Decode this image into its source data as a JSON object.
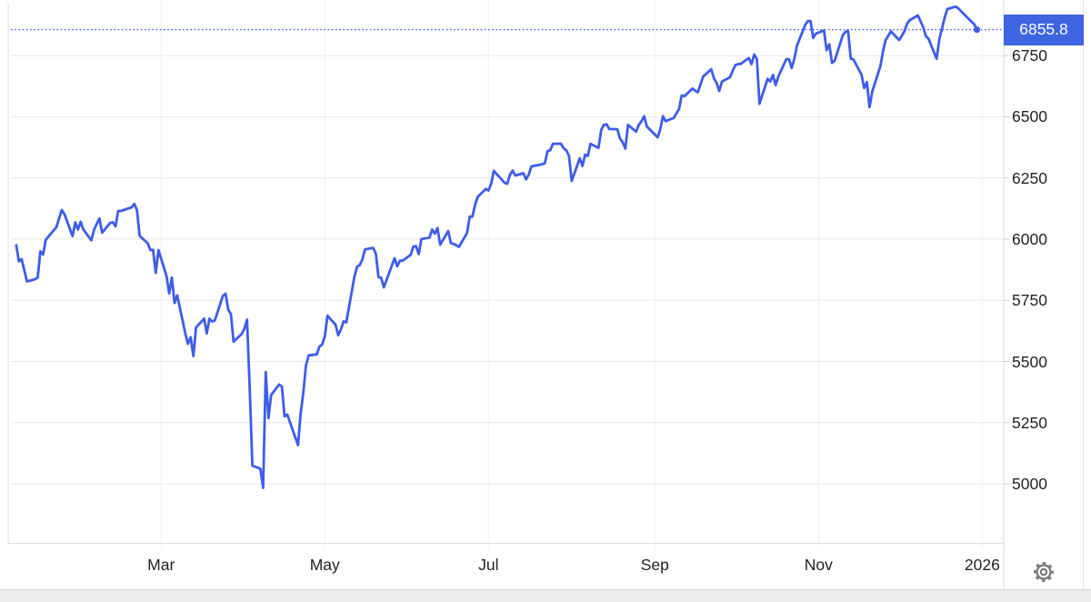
{
  "widget": {
    "background": "#ffffff",
    "toolbar": {
      "settings_icon": "gear-icon"
    }
  },
  "colors": {
    "line": "#3D5DE9",
    "badge_background": "#3E64E2",
    "badge_text": "#ffffff",
    "dotted_line": "#3D5DE9",
    "grid_horizontal": "#e8e8e8",
    "grid_vertical": "#eef1f5",
    "plot_border": "#dcdcdc",
    "axis_text": "#222222",
    "gear_icon": "#7a7a7a",
    "bottom_strip": "#ebebeb"
  },
  "chart_data": {
    "type": "line",
    "title": "",
    "xlabel": "",
    "ylabel": "",
    "legend": "none",
    "grid": "on",
    "current_value": 6855.8,
    "current_value_label": "6855.8",
    "x_domain": [
      "2025-01-03",
      "2026-01-09"
    ],
    "y_domain": [
      4755,
      6977
    ],
    "y_ticks": [
      {
        "value": 6750,
        "label": "6750"
      },
      {
        "value": 6500,
        "label": "6500"
      },
      {
        "value": 6250,
        "label": "6250"
      },
      {
        "value": 6000,
        "label": "6000"
      },
      {
        "value": 5750,
        "label": "5750"
      },
      {
        "value": 5500,
        "label": "5500"
      },
      {
        "value": 5250,
        "label": "5250"
      },
      {
        "value": 5000,
        "label": "5000"
      }
    ],
    "x_ticks": [
      {
        "date": "2025-03-01",
        "label": "Mar"
      },
      {
        "date": "2025-05-01",
        "label": "May"
      },
      {
        "date": "2025-07-01",
        "label": "Jul"
      },
      {
        "date": "2025-09-01",
        "label": "Sep"
      },
      {
        "date": "2025-11-01",
        "label": "Nov"
      },
      {
        "date": "2026-01-01",
        "label": "2026"
      }
    ],
    "series": [
      [
        "2025-01-06",
        5975
      ],
      [
        "2025-01-07",
        5909
      ],
      [
        "2025-01-08",
        5918
      ],
      [
        "2025-01-10",
        5827
      ],
      [
        "2025-01-13",
        5836
      ],
      [
        "2025-01-14",
        5843
      ],
      [
        "2025-01-15",
        5950
      ],
      [
        "2025-01-16",
        5937
      ],
      [
        "2025-01-17",
        5997
      ],
      [
        "2025-01-21",
        6049
      ],
      [
        "2025-01-22",
        6086
      ],
      [
        "2025-01-23",
        6119
      ],
      [
        "2025-01-24",
        6101
      ],
      [
        "2025-01-27",
        6012
      ],
      [
        "2025-01-28",
        6068
      ],
      [
        "2025-01-29",
        6039
      ],
      [
        "2025-01-30",
        6071
      ],
      [
        "2025-01-31",
        6040
      ],
      [
        "2025-02-03",
        5995
      ],
      [
        "2025-02-04",
        6038
      ],
      [
        "2025-02-05",
        6062
      ],
      [
        "2025-02-06",
        6084
      ],
      [
        "2025-02-07",
        6026
      ],
      [
        "2025-02-10",
        6066
      ],
      [
        "2025-02-11",
        6069
      ],
      [
        "2025-02-12",
        6052
      ],
      [
        "2025-02-13",
        6115
      ],
      [
        "2025-02-14",
        6115
      ],
      [
        "2025-02-18",
        6130
      ],
      [
        "2025-02-19",
        6144
      ],
      [
        "2025-02-20",
        6118
      ],
      [
        "2025-02-21",
        6013
      ],
      [
        "2025-02-24",
        5983
      ],
      [
        "2025-02-25",
        5955
      ],
      [
        "2025-02-26",
        5956
      ],
      [
        "2025-02-27",
        5862
      ],
      [
        "2025-02-28",
        5955
      ],
      [
        "2025-03-03",
        5850
      ],
      [
        "2025-03-04",
        5778
      ],
      [
        "2025-03-05",
        5843
      ],
      [
        "2025-03-06",
        5739
      ],
      [
        "2025-03-07",
        5770
      ],
      [
        "2025-03-10",
        5615
      ],
      [
        "2025-03-11",
        5572
      ],
      [
        "2025-03-12",
        5599
      ],
      [
        "2025-03-13",
        5522
      ],
      [
        "2025-03-14",
        5639
      ],
      [
        "2025-03-17",
        5675
      ],
      [
        "2025-03-18",
        5615
      ],
      [
        "2025-03-19",
        5675
      ],
      [
        "2025-03-20",
        5663
      ],
      [
        "2025-03-21",
        5668
      ],
      [
        "2025-03-24",
        5768
      ],
      [
        "2025-03-25",
        5777
      ],
      [
        "2025-03-26",
        5712
      ],
      [
        "2025-03-27",
        5693
      ],
      [
        "2025-03-28",
        5581
      ],
      [
        "2025-03-31",
        5612
      ],
      [
        "2025-04-01",
        5633
      ],
      [
        "2025-04-02",
        5671
      ],
      [
        "2025-04-03",
        5397
      ],
      [
        "2025-04-04",
        5074
      ],
      [
        "2025-04-07",
        5062
      ],
      [
        "2025-04-08",
        4983
      ],
      [
        "2025-04-09",
        5457
      ],
      [
        "2025-04-10",
        5268
      ],
      [
        "2025-04-11",
        5363
      ],
      [
        "2025-04-14",
        5406
      ],
      [
        "2025-04-15",
        5397
      ],
      [
        "2025-04-16",
        5276
      ],
      [
        "2025-04-17",
        5283
      ],
      [
        "2025-04-21",
        5158
      ],
      [
        "2025-04-22",
        5288
      ],
      [
        "2025-04-23",
        5376
      ],
      [
        "2025-04-24",
        5485
      ],
      [
        "2025-04-25",
        5525
      ],
      [
        "2025-04-28",
        5529
      ],
      [
        "2025-04-29",
        5561
      ],
      [
        "2025-04-30",
        5569
      ],
      [
        "2025-05-01",
        5604
      ],
      [
        "2025-05-02",
        5687
      ],
      [
        "2025-05-05",
        5650
      ],
      [
        "2025-05-06",
        5607
      ],
      [
        "2025-05-07",
        5631
      ],
      [
        "2025-05-08",
        5664
      ],
      [
        "2025-05-09",
        5660
      ],
      [
        "2025-05-12",
        5844
      ],
      [
        "2025-05-13",
        5887
      ],
      [
        "2025-05-14",
        5893
      ],
      [
        "2025-05-15",
        5917
      ],
      [
        "2025-05-16",
        5958
      ],
      [
        "2025-05-19",
        5964
      ],
      [
        "2025-05-20",
        5940
      ],
      [
        "2025-05-21",
        5845
      ],
      [
        "2025-05-22",
        5842
      ],
      [
        "2025-05-23",
        5803
      ],
      [
        "2025-05-27",
        5922
      ],
      [
        "2025-05-28",
        5889
      ],
      [
        "2025-05-29",
        5912
      ],
      [
        "2025-05-30",
        5912
      ],
      [
        "2025-06-02",
        5936
      ],
      [
        "2025-06-03",
        5970
      ],
      [
        "2025-06-04",
        5971
      ],
      [
        "2025-06-05",
        5939
      ],
      [
        "2025-06-06",
        6000
      ],
      [
        "2025-06-09",
        6006
      ],
      [
        "2025-06-10",
        6039
      ],
      [
        "2025-06-11",
        6022
      ],
      [
        "2025-06-12",
        6045
      ],
      [
        "2025-06-13",
        5977
      ],
      [
        "2025-06-16",
        6033
      ],
      [
        "2025-06-17",
        5983
      ],
      [
        "2025-06-18",
        5981
      ],
      [
        "2025-06-20",
        5968
      ],
      [
        "2025-06-23",
        6025
      ],
      [
        "2025-06-24",
        6092
      ],
      [
        "2025-06-25",
        6092
      ],
      [
        "2025-06-26",
        6141
      ],
      [
        "2025-06-27",
        6173
      ],
      [
        "2025-06-30",
        6205
      ],
      [
        "2025-07-01",
        6198
      ],
      [
        "2025-07-02",
        6227
      ],
      [
        "2025-07-03",
        6279
      ],
      [
        "2025-07-07",
        6230
      ],
      [
        "2025-07-08",
        6226
      ],
      [
        "2025-07-09",
        6263
      ],
      [
        "2025-07-10",
        6280
      ],
      [
        "2025-07-11",
        6260
      ],
      [
        "2025-07-14",
        6269
      ],
      [
        "2025-07-15",
        6244
      ],
      [
        "2025-07-16",
        6264
      ],
      [
        "2025-07-17",
        6297
      ],
      [
        "2025-07-21",
        6306
      ],
      [
        "2025-07-22",
        6310
      ],
      [
        "2025-07-23",
        6359
      ],
      [
        "2025-07-24",
        6363
      ],
      [
        "2025-07-25",
        6389
      ],
      [
        "2025-07-28",
        6390
      ],
      [
        "2025-07-29",
        6371
      ],
      [
        "2025-07-30",
        6363
      ],
      [
        "2025-07-31",
        6339
      ],
      [
        "2025-08-01",
        6238
      ],
      [
        "2025-08-04",
        6330
      ],
      [
        "2025-08-05",
        6299
      ],
      [
        "2025-08-06",
        6345
      ],
      [
        "2025-08-07",
        6340
      ],
      [
        "2025-08-08",
        6389
      ],
      [
        "2025-08-11",
        6373
      ],
      [
        "2025-08-12",
        6446
      ],
      [
        "2025-08-13",
        6467
      ],
      [
        "2025-08-14",
        6469
      ],
      [
        "2025-08-15",
        6450
      ],
      [
        "2025-08-18",
        6449
      ],
      [
        "2025-08-19",
        6411
      ],
      [
        "2025-08-20",
        6396
      ],
      [
        "2025-08-21",
        6370
      ],
      [
        "2025-08-22",
        6467
      ],
      [
        "2025-08-25",
        6439
      ],
      [
        "2025-08-26",
        6466
      ],
      [
        "2025-08-27",
        6481
      ],
      [
        "2025-08-28",
        6502
      ],
      [
        "2025-08-29",
        6460
      ],
      [
        "2025-09-02",
        6416
      ],
      [
        "2025-09-03",
        6448
      ],
      [
        "2025-09-04",
        6502
      ],
      [
        "2025-09-05",
        6482
      ],
      [
        "2025-09-08",
        6495
      ],
      [
        "2025-09-09",
        6513
      ],
      [
        "2025-09-10",
        6532
      ],
      [
        "2025-09-11",
        6587
      ],
      [
        "2025-09-12",
        6584
      ],
      [
        "2025-09-15",
        6615
      ],
      [
        "2025-09-16",
        6607
      ],
      [
        "2025-09-17",
        6600
      ],
      [
        "2025-09-18",
        6632
      ],
      [
        "2025-09-19",
        6664
      ],
      [
        "2025-09-22",
        6694
      ],
      [
        "2025-09-23",
        6657
      ],
      [
        "2025-09-24",
        6638
      ],
      [
        "2025-09-25",
        6605
      ],
      [
        "2025-09-26",
        6644
      ],
      [
        "2025-09-29",
        6661
      ],
      [
        "2025-09-30",
        6688
      ],
      [
        "2025-10-01",
        6711
      ],
      [
        "2025-10-02",
        6715
      ],
      [
        "2025-10-03",
        6716
      ],
      [
        "2025-10-06",
        6740
      ],
      [
        "2025-10-07",
        6715
      ],
      [
        "2025-10-08",
        6754
      ],
      [
        "2025-10-09",
        6735
      ],
      [
        "2025-10-10",
        6553
      ],
      [
        "2025-10-13",
        6655
      ],
      [
        "2025-10-14",
        6644
      ],
      [
        "2025-10-15",
        6671
      ],
      [
        "2025-10-16",
        6629
      ],
      [
        "2025-10-17",
        6664
      ],
      [
        "2025-10-20",
        6735
      ],
      [
        "2025-10-21",
        6735
      ],
      [
        "2025-10-22",
        6699
      ],
      [
        "2025-10-23",
        6738
      ],
      [
        "2025-10-24",
        6792
      ],
      [
        "2025-10-27",
        6875
      ],
      [
        "2025-10-28",
        6891
      ],
      [
        "2025-10-29",
        6891
      ],
      [
        "2025-10-30",
        6822
      ],
      [
        "2025-10-31",
        6840
      ],
      [
        "2025-11-03",
        6852
      ],
      [
        "2025-11-04",
        6772
      ],
      [
        "2025-11-05",
        6796
      ],
      [
        "2025-11-06",
        6720
      ],
      [
        "2025-11-07",
        6729
      ],
      [
        "2025-11-10",
        6832
      ],
      [
        "2025-11-11",
        6847
      ],
      [
        "2025-11-12",
        6851
      ],
      [
        "2025-11-13",
        6737
      ],
      [
        "2025-11-14",
        6734
      ],
      [
        "2025-11-17",
        6672
      ],
      [
        "2025-11-18",
        6617
      ],
      [
        "2025-11-19",
        6642
      ],
      [
        "2025-11-20",
        6539
      ],
      [
        "2025-11-21",
        6603
      ],
      [
        "2025-11-24",
        6705
      ],
      [
        "2025-11-25",
        6766
      ],
      [
        "2025-11-26",
        6813
      ],
      [
        "2025-11-28",
        6849
      ],
      [
        "2025-12-01",
        6813
      ],
      [
        "2025-12-02",
        6830
      ],
      [
        "2025-12-03",
        6850
      ],
      [
        "2025-12-04",
        6880
      ],
      [
        "2025-12-05",
        6895
      ],
      [
        "2025-12-08",
        6914
      ],
      [
        "2025-12-09",
        6890
      ],
      [
        "2025-12-10",
        6866
      ],
      [
        "2025-12-11",
        6829
      ],
      [
        "2025-12-12",
        6818
      ],
      [
        "2025-12-15",
        6737
      ],
      [
        "2025-12-16",
        6817
      ],
      [
        "2025-12-17",
        6860
      ],
      [
        "2025-12-18",
        6906
      ],
      [
        "2025-12-19",
        6940
      ],
      [
        "2025-12-22",
        6950
      ],
      [
        "2025-12-23",
        6944
      ],
      [
        "2025-12-24",
        6932
      ],
      [
        "2025-12-26",
        6910
      ],
      [
        "2025-12-29",
        6878
      ],
      [
        "2025-12-30",
        6855.8
      ]
    ],
    "layout": {
      "plot_left": 9,
      "plot_right": 1104,
      "plot_top": 0,
      "plot_bottom": 598,
      "axis_band_top": 598,
      "strip_top": 648
    }
  }
}
